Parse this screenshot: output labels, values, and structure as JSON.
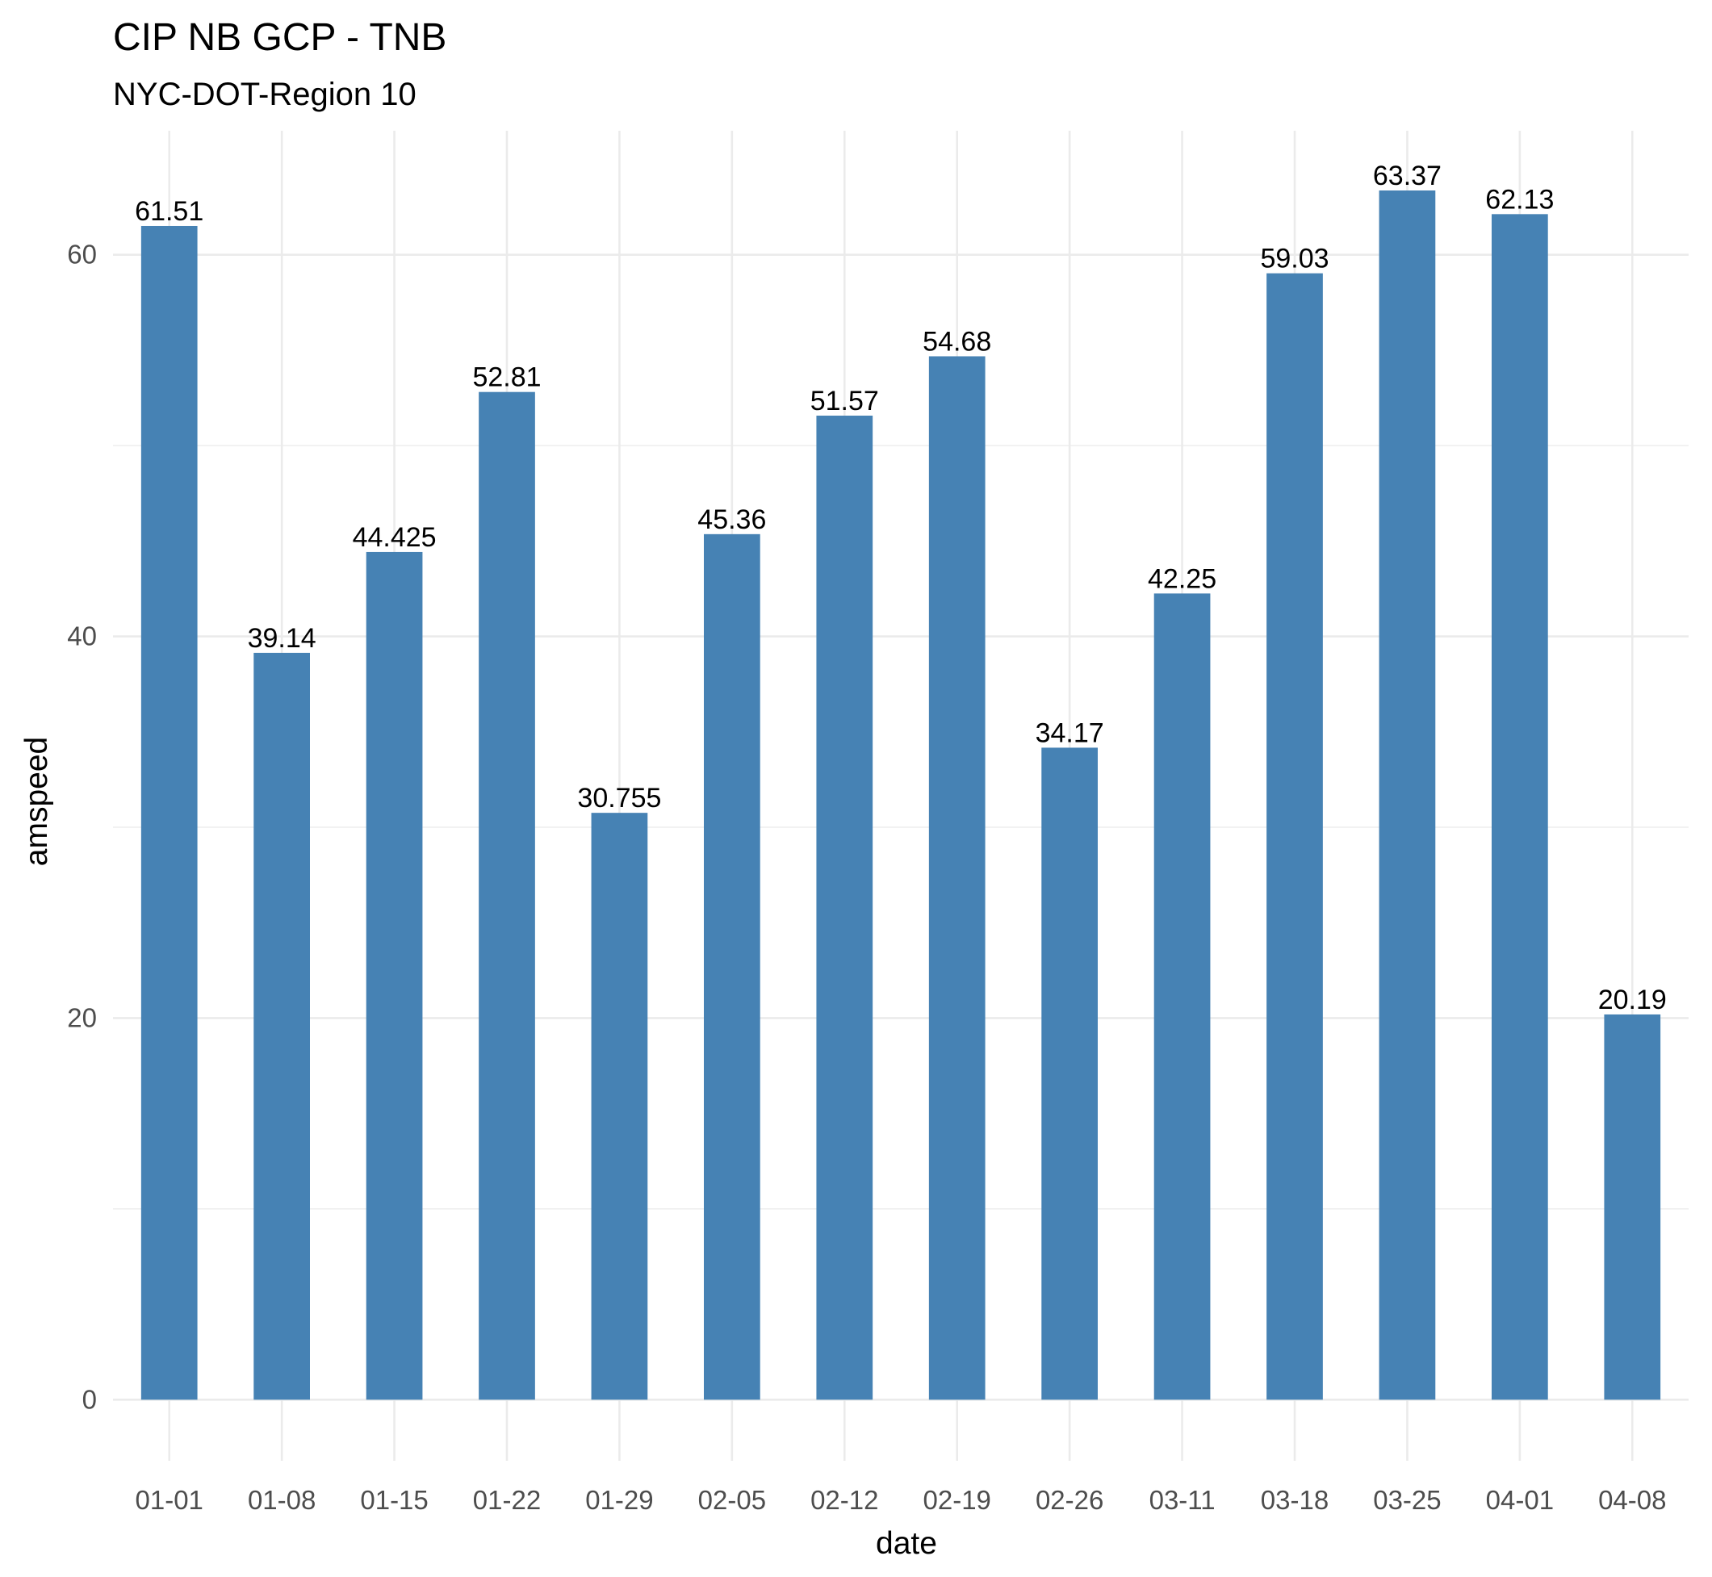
{
  "chart_data": {
    "type": "bar",
    "title": "CIP NB GCP - TNB",
    "subtitle": "NYC-DOT-Region 10",
    "xlabel": "date",
    "ylabel": "amspeed",
    "categories": [
      "01-01",
      "01-08",
      "01-15",
      "01-22",
      "01-29",
      "02-05",
      "02-12",
      "02-19",
      "02-26",
      "03-11",
      "03-18",
      "03-25",
      "04-01",
      "04-08"
    ],
    "values": [
      61.51,
      39.14,
      44.425,
      52.81,
      30.755,
      45.36,
      51.57,
      54.68,
      34.17,
      42.25,
      59.03,
      63.37,
      62.13,
      20.19
    ],
    "data_labels": [
      "61.51",
      "39.14",
      "44.425",
      "52.81",
      "30.755",
      "45.36",
      "51.57",
      "54.68",
      "34.17",
      "42.25",
      "59.03",
      "63.37",
      "62.13",
      "20.19"
    ],
    "yticks": [
      0,
      20,
      40,
      60
    ],
    "ytick_labels": [
      "0",
      "20",
      "40",
      "60"
    ],
    "yminor": [
      10,
      30,
      50
    ],
    "ylim": [
      -3.2,
      66.5
    ],
    "grid": true,
    "legend": "none",
    "bar_color": "#4682b4"
  }
}
